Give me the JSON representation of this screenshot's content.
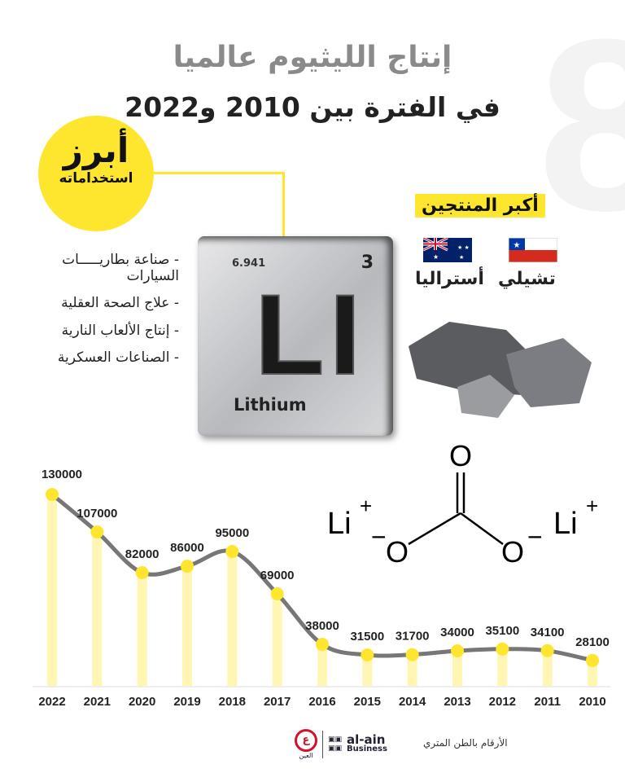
{
  "title": {
    "line1": "إنتاج الليثيوم عالميا",
    "line2": "في الفترة بين 2010 و2022"
  },
  "uses": {
    "badge_line1": "أبرز",
    "badge_line2": "استخداماته",
    "items": [
      "- صناعة بطاريـــــات السيارات",
      "- علاج الصحة العقلية",
      "- إنتاج الألعاب النارية",
      "- الصناعات العسكرية"
    ]
  },
  "element": {
    "mass": "6.941",
    "number": "3",
    "symbol": "LI",
    "name": "Lithium"
  },
  "producers": {
    "heading": "أكبر المنتجين",
    "countries": [
      "تشيلي",
      "أستراليا"
    ]
  },
  "molecule": {
    "li_left": "Li",
    "li_right": "Li",
    "plus": "+",
    "o_top": "O",
    "o_left": "O",
    "o_right": "O",
    "minus": "−"
  },
  "footer": {
    "note": "الأرقام بالطن المتري",
    "brand": "al-ain",
    "brand_sub": "Business",
    "brand_ar": "العين"
  },
  "colors": {
    "accent": "#ffe62e",
    "bar": "#fff6b3",
    "line": "#777777"
  },
  "chart_data": {
    "type": "line",
    "title": "إنتاج الليثيوم عالميا",
    "unit": "metric tons",
    "categories": [
      "2022",
      "2021",
      "2020",
      "2019",
      "2018",
      "2017",
      "2016",
      "2015",
      "2014",
      "2013",
      "2012",
      "2011",
      "2010"
    ],
    "values": [
      130000,
      107000,
      82000,
      86000,
      95000,
      69000,
      38000,
      31500,
      31700,
      34000,
      35100,
      34100,
      28100
    ],
    "labels": [
      "130000",
      "107000",
      "82000",
      "86000",
      "95000",
      "69000",
      "38000",
      "31500",
      "31700",
      "34000",
      "35100",
      "34100",
      "28100"
    ]
  }
}
